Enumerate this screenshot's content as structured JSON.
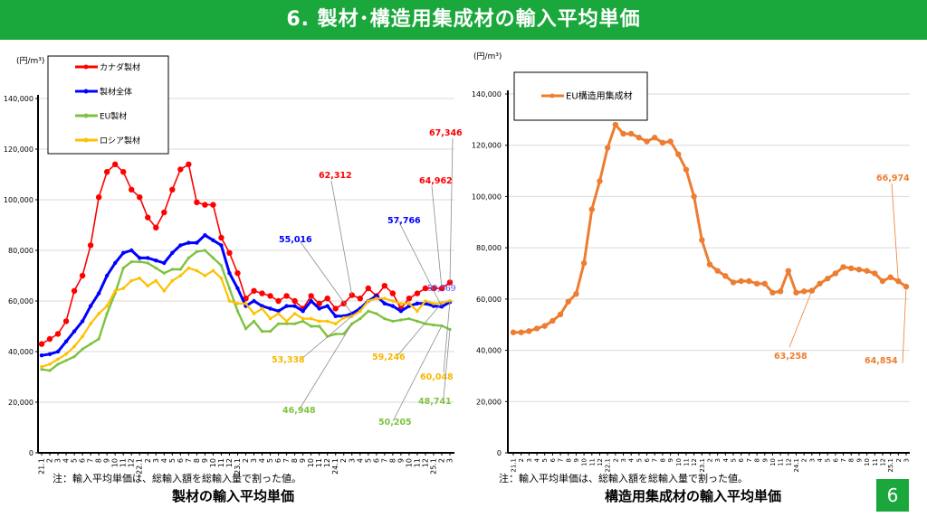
{
  "header": {
    "title": "6. 製材･構造用集成材の輸入平均単価"
  },
  "page_number": "6",
  "left": {
    "note": "注：輸入平均単価は、総輸入額を総輸入量で割った値。",
    "title": "製材の輸入平均単価"
  },
  "right": {
    "note": "注：輸入平均単価は、総輸入額を総輸入量で割った値。",
    "title": "構造用集成材の輸入平均単価"
  },
  "chart_data": [
    {
      "type": "line",
      "title": "製材の輸入平均単価",
      "ylabel": "(円/m³)",
      "ylim": [
        0,
        140000
      ],
      "yticks": [
        "0",
        "20,000",
        "40,000",
        "60,000",
        "80,000",
        "100,000",
        "120,000",
        "140,000"
      ],
      "x": [
        "21.1",
        "2",
        "3",
        "4",
        "5",
        "6",
        "7",
        "8",
        "9",
        "10",
        "11",
        "12",
        "22.1",
        "2",
        "3",
        "4",
        "5",
        "6",
        "7",
        "8",
        "9",
        "10",
        "11",
        "12",
        "23.1",
        "2",
        "3",
        "4",
        "5",
        "6",
        "7",
        "8",
        "9",
        "10",
        "11",
        "12",
        "24.1",
        "2",
        "3",
        "4",
        "5",
        "6",
        "7",
        "8",
        "9",
        "10",
        "11",
        "12",
        "25.1",
        "2",
        "3"
      ],
      "grid": true,
      "legend": "top-left",
      "series": [
        {
          "name": "カナダ製材",
          "color": "#ff0000",
          "values": [
            43000,
            45000,
            47000,
            52000,
            64000,
            70000,
            82000,
            101000,
            111000,
            114000,
            111000,
            104000,
            101000,
            93000,
            89000,
            95000,
            104000,
            112000,
            114000,
            99000,
            98000,
            98000,
            85000,
            79000,
            71000,
            61000,
            64000,
            63000,
            62000,
            60000,
            62000,
            60000,
            57000,
            62000,
            59000,
            61000,
            57000,
            59000,
            62312,
            61000,
            65000,
            62000,
            66000,
            63000,
            57000,
            61000,
            63000,
            65000,
            65000,
            64962,
            67346
          ]
        },
        {
          "name": "製材全体",
          "color": "#0000ff",
          "values": [
            38500,
            39000,
            40000,
            44000,
            48000,
            52000,
            58000,
            63000,
            70000,
            75000,
            79000,
            80000,
            77000,
            77000,
            76000,
            75000,
            79000,
            82000,
            83000,
            83000,
            86000,
            84000,
            82000,
            71000,
            65000,
            58000,
            60000,
            58000,
            57000,
            56000,
            58000,
            58000,
            56000,
            60000,
            57000,
            58000,
            54000,
            54000,
            55016,
            57000,
            60000,
            62000,
            59000,
            58000,
            56000,
            58000,
            59000,
            59000,
            58000,
            57766,
            59569
          ]
        },
        {
          "name": "EU製材",
          "color": "#7fc241",
          "values": [
            33000,
            32500,
            35000,
            36500,
            38000,
            41000,
            43000,
            45000,
            55000,
            63000,
            73000,
            75500,
            75500,
            75000,
            73000,
            71000,
            72500,
            72500,
            77000,
            79500,
            80000,
            77000,
            74000,
            65000,
            56000,
            49000,
            52000,
            48000,
            48000,
            51000,
            51000,
            51000,
            52000,
            50000,
            50000,
            46000,
            46948,
            47000,
            51000,
            53000,
            56000,
            55000,
            53000,
            52000,
            52500,
            53000,
            52000,
            51000,
            50500,
            50205,
            48741
          ]
        },
        {
          "name": "ロシア製材",
          "color": "#ffc000",
          "values": [
            34000,
            35000,
            37000,
            39000,
            42000,
            46000,
            51000,
            55000,
            58000,
            64000,
            65000,
            68000,
            69000,
            66000,
            68000,
            64000,
            68000,
            70000,
            73000,
            72000,
            70000,
            72000,
            69000,
            60000,
            59000,
            59000,
            55000,
            57000,
            53000,
            55000,
            52000,
            55000,
            53000,
            53000,
            52000,
            52000,
            51000,
            53338,
            54000,
            56000,
            60000,
            61000,
            61000,
            60000,
            59000,
            59000,
            56000,
            60000,
            59000,
            59246,
            60048
          ]
        }
      ],
      "annotations": [
        {
          "text": "67,346",
          "series": "カナダ製材",
          "x": "3"
        },
        {
          "text": "64,962",
          "series": "カナダ製材",
          "x": "2"
        },
        {
          "text": "62,312",
          "series": "カナダ製材",
          "x": "3"
        },
        {
          "text": "55,016",
          "series": "製材全体",
          "x": "3"
        },
        {
          "text": "57,766",
          "series": "製材全体",
          "x": "2"
        },
        {
          "text": "59,569",
          "series": "製材全体",
          "x": "3"
        },
        {
          "text": "53,338",
          "series": "ロシア製材",
          "x": "2"
        },
        {
          "text": "59,246",
          "series": "ロシア製材",
          "x": "2"
        },
        {
          "text": "60,048",
          "series": "ロシア製材",
          "x": "3"
        },
        {
          "text": "46,948",
          "series": "EU製材",
          "x": "1"
        },
        {
          "text": "50,205",
          "series": "EU製材",
          "x": "2"
        },
        {
          "text": "48,741",
          "series": "EU製材",
          "x": "3"
        }
      ]
    },
    {
      "type": "line",
      "title": "構造用集成材の輸入平均単価",
      "ylabel": "(円/m³)",
      "ylim": [
        0,
        140000
      ],
      "yticks": [
        "0",
        "20,000",
        "40,000",
        "60,000",
        "80,000",
        "100,000",
        "120,000",
        "140,000"
      ],
      "x": [
        "21.1",
        "2",
        "3",
        "4",
        "5",
        "6",
        "7",
        "8",
        "9",
        "10",
        "11",
        "12",
        "22.1",
        "2",
        "3",
        "4",
        "5",
        "6",
        "7",
        "8",
        "9",
        "10",
        "11",
        "12",
        "23.1",
        "2",
        "3",
        "4",
        "5",
        "6",
        "7",
        "8",
        "9",
        "10",
        "11",
        "12",
        "24.1",
        "2",
        "3",
        "4",
        "5",
        "6",
        "7",
        "8",
        "9",
        "10",
        "11",
        "12",
        "25.1",
        "2",
        "3"
      ],
      "grid": true,
      "legend": "top-left",
      "series": [
        {
          "name": "EU構造用集成材",
          "color": "#ed7d31",
          "values": [
            47000,
            47000,
            47500,
            48500,
            49500,
            51500,
            54000,
            59000,
            62000,
            74000,
            95000,
            106000,
            119000,
            128000,
            124500,
            124500,
            123000,
            121500,
            123000,
            121000,
            121500,
            116500,
            110500,
            100000,
            83000,
            73500,
            71000,
            69000,
            66500,
            67000,
            67000,
            66000,
            66000,
            62500,
            63000,
            71000,
            62500,
            63000,
            63258,
            66000,
            68000,
            70000,
            72500,
            72000,
            71500,
            71000,
            70000,
            67000,
            68500,
            66974,
            64854
          ]
        }
      ],
      "annotations": [
        {
          "text": "66,974",
          "series": "EU構造用集成材",
          "x": "2"
        },
        {
          "text": "63,258",
          "series": "EU構造用集成材",
          "x": "3"
        },
        {
          "text": "64,854",
          "series": "EU構造用集成材",
          "x": "3"
        }
      ]
    }
  ]
}
